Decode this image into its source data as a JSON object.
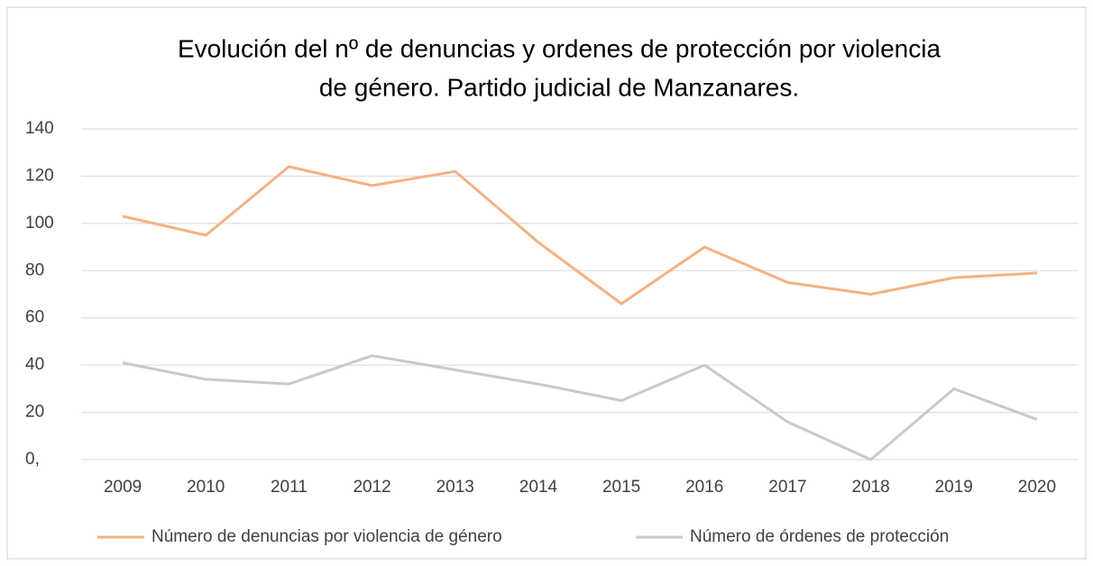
{
  "chart_data": {
    "type": "line",
    "title": [
      "Evolución del nº de denuncias y ordenes de protección por violencia",
      "de género. Partido judicial de Manzanares."
    ],
    "categories": [
      "2009",
      "2010",
      "2011",
      "2012",
      "2013",
      "2014",
      "2015",
      "2016",
      "2017",
      "2018",
      "2019",
      "2020"
    ],
    "series": [
      {
        "name": "Número de denuncias por violencia de género",
        "color": "#f4b183",
        "values": [
          103,
          95,
          124,
          116,
          122,
          92,
          66,
          90,
          75,
          70,
          77,
          79
        ]
      },
      {
        "name": "Número de órdenes de protección",
        "color": "#c9c9c9",
        "values": [
          41,
          34,
          32,
          44,
          38,
          32,
          25,
          40,
          16,
          0,
          30,
          17
        ]
      }
    ],
    "ylim": [
      0,
      140
    ],
    "yticks": [
      {
        "value": 0,
        "label": "0,"
      },
      20,
      40,
      60,
      80,
      100,
      120,
      140
    ],
    "grid": true,
    "legend": "bottom"
  }
}
